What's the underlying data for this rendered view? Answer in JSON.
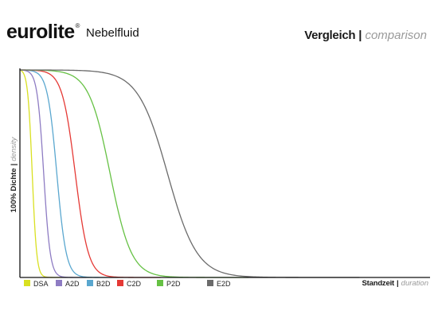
{
  "header": {
    "brand": "eurolite",
    "registered_mark": "®",
    "product": "Nebelfluid",
    "title_de": "Vergleich",
    "title_sep": "|",
    "title_en": "comparison"
  },
  "chart_data": {
    "type": "line",
    "ylabel_de": "100% Dichte",
    "ylabel_sep": "|",
    "ylabel_en": "density",
    "xlabel_de": "Standzeit",
    "xlabel_sep": "|",
    "xlabel_en": "duration",
    "xlim": [
      0,
      100
    ],
    "ylim": [
      0,
      100
    ],
    "grid": false,
    "legend_position": "bottom-left",
    "series": [
      {
        "name": "DSA",
        "color": "#d9e021",
        "halftime": 3.0,
        "steepness": 1.1,
        "x": [
          0,
          1,
          2,
          3,
          4,
          5,
          6,
          8
        ],
        "y": [
          100,
          90,
          70,
          50,
          28,
          14,
          6,
          0
        ]
      },
      {
        "name": "A2D",
        "color": "#8e7cc3",
        "halftime": 5.8,
        "steepness": 1.6,
        "x": [
          0,
          2,
          4,
          5.8,
          8,
          10,
          13,
          16
        ],
        "y": [
          100,
          92,
          76,
          50,
          22,
          9,
          3,
          0
        ]
      },
      {
        "name": "B2D",
        "color": "#5aa7cf",
        "halftime": 9.0,
        "steepness": 2.3,
        "x": [
          0,
          4,
          7,
          9,
          11,
          14,
          18,
          23
        ],
        "y": [
          100,
          92,
          72,
          50,
          30,
          12,
          4,
          0
        ]
      },
      {
        "name": "C2D",
        "color": "#e53935",
        "halftime": 13.5,
        "steepness": 3.2,
        "x": [
          0,
          6,
          11,
          13.5,
          16,
          20,
          26,
          33
        ],
        "y": [
          100,
          95,
          75,
          50,
          30,
          12,
          4,
          0
        ]
      },
      {
        "name": "P2D",
        "color": "#66c144",
        "halftime": 22.0,
        "steepness": 5.2,
        "x": [
          0,
          10,
          18,
          22,
          26,
          32,
          40,
          50
        ],
        "y": [
          100,
          94,
          72,
          50,
          32,
          14,
          4,
          0
        ]
      },
      {
        "name": "E2D",
        "color": "#6b6b6b",
        "halftime": 36.0,
        "steepness": 7.2,
        "x": [
          0,
          18,
          30,
          36,
          42,
          52,
          64,
          80
        ],
        "y": [
          100,
          94,
          74,
          50,
          30,
          12,
          4,
          0
        ]
      }
    ]
  }
}
